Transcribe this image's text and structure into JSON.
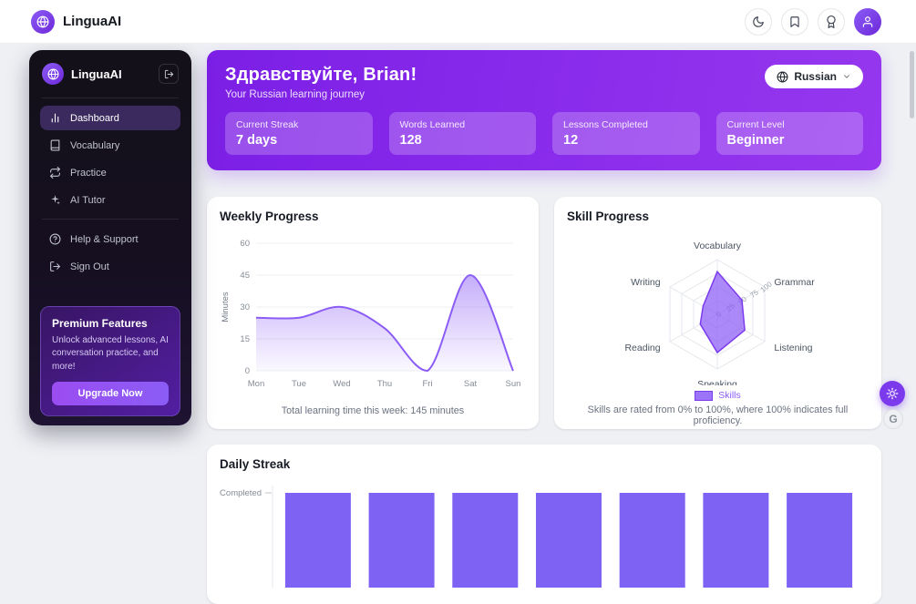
{
  "topbar": {
    "brand": "LinguaAI",
    "actions": [
      {
        "name": "dark-mode",
        "icon": "moon-icon"
      },
      {
        "name": "bookmarks",
        "icon": "bookmark-icon"
      },
      {
        "name": "achievements",
        "icon": "award-icon"
      },
      {
        "name": "profile",
        "icon": "user-icon"
      }
    ]
  },
  "sidebar": {
    "brand": "LinguaAI",
    "nav": [
      {
        "label": "Dashboard",
        "icon": "dashboard",
        "active": true
      },
      {
        "label": "Vocabulary",
        "icon": "book",
        "active": false
      },
      {
        "label": "Practice",
        "icon": "repeat",
        "active": false
      },
      {
        "label": "AI Tutor",
        "icon": "sparkles",
        "active": false
      }
    ],
    "secondary": [
      {
        "label": "Help & Support",
        "icon": "help",
        "active": false
      },
      {
        "label": "Sign Out",
        "icon": "logout",
        "active": false
      }
    ],
    "premium": {
      "title": "Premium Features",
      "body": "Unlock advanced lessons, AI conversation practice, and more!",
      "cta": "Upgrade Now"
    }
  },
  "hero": {
    "greeting": "Здравствуйте, Brian!",
    "subtitle": "Your Russian learning journey",
    "language": "Russian",
    "stats": [
      {
        "label": "Current Streak",
        "value": "7 days"
      },
      {
        "label": "Words Learned",
        "value": "128"
      },
      {
        "label": "Lessons Completed",
        "value": "12"
      },
      {
        "label": "Current Level",
        "value": "Beginner"
      }
    ]
  },
  "chart_data": [
    {
      "type": "area",
      "title": "Weekly Progress",
      "categories": [
        "Mon",
        "Tue",
        "Wed",
        "Thu",
        "Fri",
        "Sat",
        "Sun"
      ],
      "values": [
        25,
        25,
        30,
        20,
        0,
        45,
        0
      ],
      "ylabel": "Minutes",
      "yticks": [
        0,
        15,
        30,
        45,
        60
      ],
      "ylim": [
        0,
        60
      ],
      "grid": true,
      "color": "#8b5cf6",
      "caption": "Total learning time this week: 145 minutes"
    },
    {
      "type": "radar",
      "title": "Skill Progress",
      "categories": [
        "Vocabulary",
        "Grammar",
        "Listening",
        "Speaking",
        "Reading",
        "Writing"
      ],
      "series": [
        {
          "name": "Skills",
          "values": [
            78,
            52,
            58,
            70,
            36,
            30
          ]
        }
      ],
      "rticks": [
        0,
        25,
        50,
        75,
        100
      ],
      "rlim": [
        0,
        100
      ],
      "legend_position": "bottom",
      "color": "#7c3aed",
      "fill": "rgba(139,92,246,0.72)",
      "caption": "Skills are rated from 0% to 100%, where 100% indicates full proficiency."
    },
    {
      "type": "bar",
      "title": "Daily Streak",
      "values": [
        1,
        1,
        1,
        1,
        1,
        1,
        1
      ],
      "ylim": [
        0,
        1
      ],
      "ytick_label": "Completed",
      "color": "#7e62f4"
    }
  ],
  "floating": {
    "widget_label": "G"
  },
  "colors": {
    "accent": "#7c3aed",
    "chart_purple": "#8b5cf6",
    "hero_gradient_from": "#7c1fe6",
    "hero_gradient_to": "#9637ef",
    "sidebar_bg": "#141019"
  }
}
